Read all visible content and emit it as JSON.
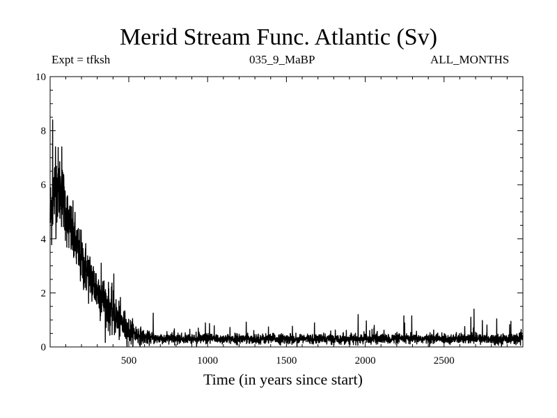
{
  "chart_data": {
    "type": "line",
    "title": "Merid Stream Func. Atlantic (Sv)",
    "subtitle_left": "Expt = tfksh",
    "subtitle_center": "035_9_MaBP",
    "subtitle_right": "ALL_MONTHS",
    "xlabel": "Time (in years since start)",
    "ylabel": "",
    "xlim": [
      1,
      3000
    ],
    "ylim": [
      0,
      10
    ],
    "xticks": [
      500,
      1000,
      1500,
      2000,
      2500
    ],
    "xtick_labels": [
      "500",
      "1000",
      "1500",
      "2000",
      "2500"
    ],
    "yticks": [
      0,
      2,
      4,
      6,
      8,
      10
    ],
    "ytick_labels": [
      "0",
      "2",
      "4",
      "6",
      "8",
      "10"
    ],
    "series": [
      {
        "name": "Merid Stream Func. Atlantic",
        "color": "#000000",
        "sampling": "annual values, years 1-3000",
        "trend_x": [
          1,
          20,
          50,
          80,
          120,
          200,
          300,
          400,
          500,
          600,
          700,
          3000
        ],
        "trend_y": [
          4.8,
          5.6,
          6.0,
          5.6,
          4.5,
          3.2,
          2.1,
          1.2,
          0.6,
          0.35,
          0.3,
          0.3
        ],
        "noise_std": [
          0.7,
          0.7,
          0.7,
          0.6,
          0.55,
          0.5,
          0.45,
          0.4,
          0.25,
          0.12,
          0.09,
          0.09
        ],
        "peaks_x": [
          17,
          35,
          75,
          325,
          405,
          655,
          1955,
          2245,
          2295,
          2670,
          2690
        ],
        "peaks_y": [
          8.4,
          7.4,
          7.4,
          3.1,
          2.7,
          1.25,
          1.2,
          1.15,
          1.15,
          1.1,
          1.4
        ]
      }
    ]
  }
}
